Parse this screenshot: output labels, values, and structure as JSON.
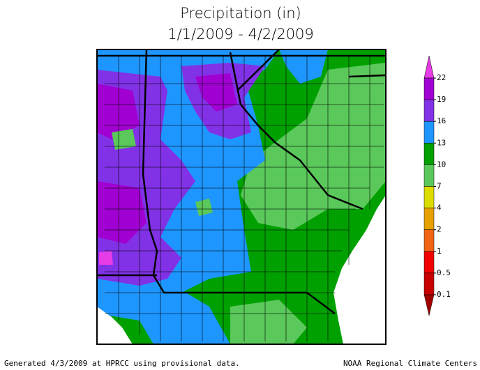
{
  "header": {
    "title": "Precipitation (in)",
    "subtitle": "1/1/2009 - 4/2/2009"
  },
  "legend": {
    "labels": [
      22,
      19,
      16,
      13,
      10,
      7,
      4,
      2,
      1,
      0.5,
      0.1
    ],
    "colors": [
      "#e63ce6",
      "#a000d2",
      "#8232e6",
      "#1e96ff",
      "#00a000",
      "#5ac85a",
      "#dcdc00",
      "#e6a000",
      "#f06414",
      "#f00000",
      "#c80000",
      "#a00000"
    ]
  },
  "footer": {
    "left": "Generated 4/3/2009 at HPRCC using provisional data.",
    "right": "NOAA Regional Climate Centers"
  }
}
